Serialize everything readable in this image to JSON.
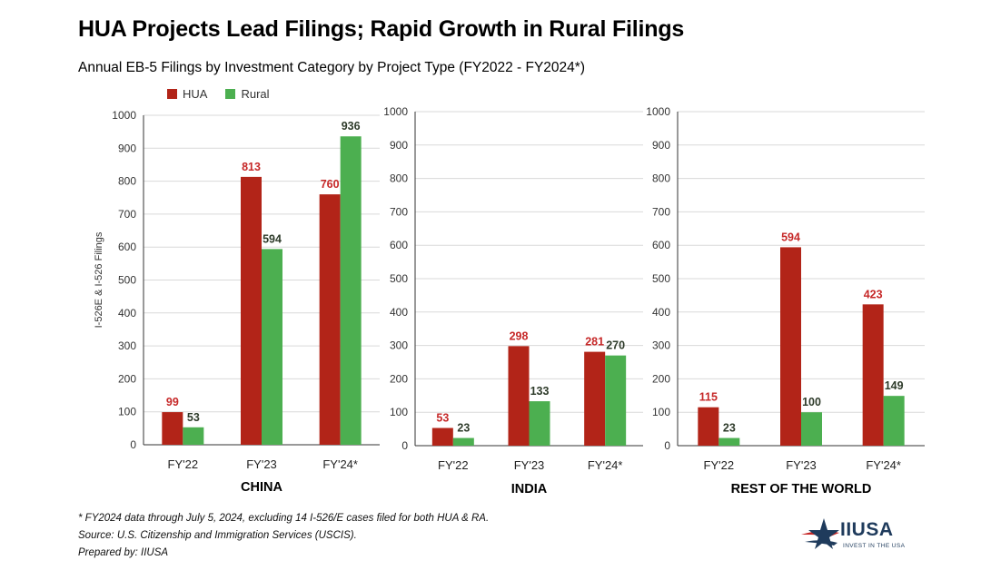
{
  "title": "HUA Projects Lead Filings; Rapid Growth in Rural Filings",
  "subtitle": "Annual EB-5 Filings by Investment Category by Project Type (FY2022 - FY2024*)",
  "legend": [
    {
      "name": "HUA",
      "color": "#b22418"
    },
    {
      "name": "Rural",
      "color": "#4caf50"
    }
  ],
  "colors": {
    "hua": "#b22418",
    "rural": "#4caf50",
    "hua_label": "#c62828",
    "rural_label": "#2e3b2a"
  },
  "footnotes": [
    "* FY2024 data through July 5, 2024, excluding 14 I-526/E cases filed for both HUA & RA.",
    "Source: U.S. Citizenship and Immigration Services (USCIS).",
    "Prepared by: IIUSA"
  ],
  "logo": {
    "name": "IIUSA",
    "tagline": "INVEST IN THE USA",
    "icon": "star-swoosh-icon"
  },
  "chart_data": [
    {
      "type": "bar",
      "title": "CHINA",
      "categories": [
        "FY'22",
        "FY'23",
        "FY'24*"
      ],
      "series": [
        {
          "name": "HUA",
          "values": [
            99,
            813,
            760
          ]
        },
        {
          "name": "Rural",
          "values": [
            53,
            594,
            936
          ]
        }
      ],
      "ylabel": "I-526E & I-526 Filings",
      "ylim": [
        0,
        1000
      ],
      "yticks": [
        0,
        100,
        200,
        300,
        400,
        500,
        600,
        700,
        800,
        900,
        1000
      ],
      "grid": true
    },
    {
      "type": "bar",
      "title": "INDIA",
      "categories": [
        "FY'22",
        "FY'23",
        "FY'24*"
      ],
      "series": [
        {
          "name": "HUA",
          "values": [
            53,
            298,
            281
          ]
        },
        {
          "name": "Rural",
          "values": [
            23,
            133,
            270
          ]
        }
      ],
      "ylabel": "",
      "ylim": [
        0,
        1000
      ],
      "yticks": [
        0,
        100,
        200,
        300,
        400,
        500,
        600,
        700,
        800,
        900,
        1000
      ],
      "grid": true
    },
    {
      "type": "bar",
      "title": "REST OF THE WORLD",
      "categories": [
        "FY'22",
        "FY'23",
        "FY'24*"
      ],
      "series": [
        {
          "name": "HUA",
          "values": [
            115,
            594,
            423
          ]
        },
        {
          "name": "Rural",
          "values": [
            23,
            100,
            149
          ]
        }
      ],
      "ylabel": "",
      "ylim": [
        0,
        1000
      ],
      "yticks": [
        0,
        100,
        200,
        300,
        400,
        500,
        600,
        700,
        800,
        900,
        1000
      ],
      "grid": true
    }
  ]
}
